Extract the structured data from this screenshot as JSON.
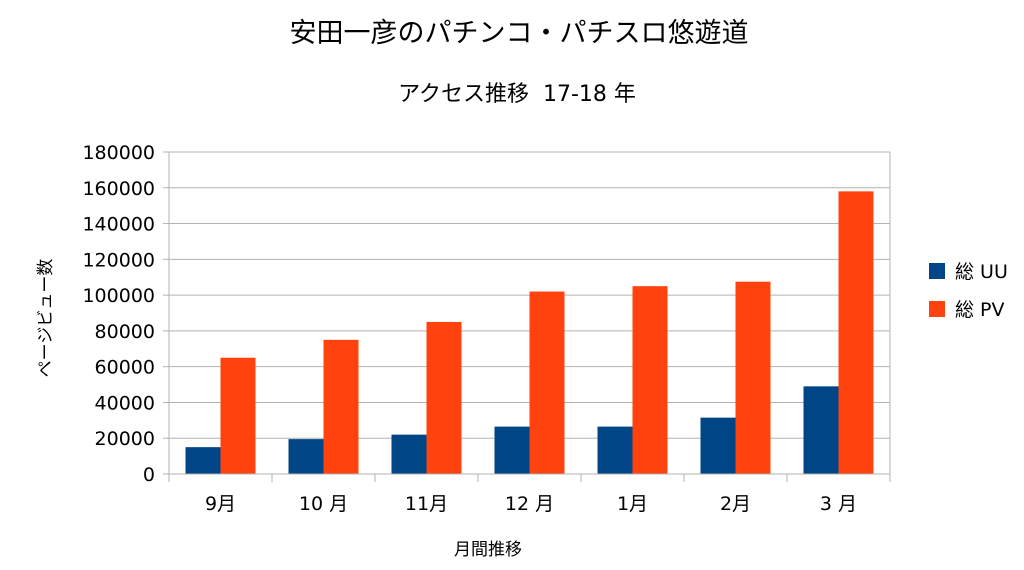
{
  "chart_data": {
    "type": "bar",
    "title": "安田一彦のパチンコ・パチスロ悠遊道",
    "subtitle": "アクセス推移  17-18 年",
    "xlabel": "月間推移",
    "ylabel": "ページビュー数",
    "categories": [
      "9月",
      "10 月",
      "11月",
      "12 月",
      "1月",
      "2月",
      "3 月"
    ],
    "series": [
      {
        "name": "総 UU",
        "color": "#004586",
        "values": [
          15000,
          19500,
          22000,
          26500,
          26500,
          31500,
          49000
        ]
      },
      {
        "name": "総 PV",
        "color": "#ff420e",
        "values": [
          65000,
          75000,
          85000,
          102000,
          105000,
          107500,
          158000
        ]
      }
    ],
    "ylim": [
      0,
      180000
    ],
    "yticks": [
      0,
      20000,
      40000,
      60000,
      80000,
      100000,
      120000,
      140000,
      160000,
      180000
    ],
    "grid": true,
    "legend_position": "right"
  }
}
